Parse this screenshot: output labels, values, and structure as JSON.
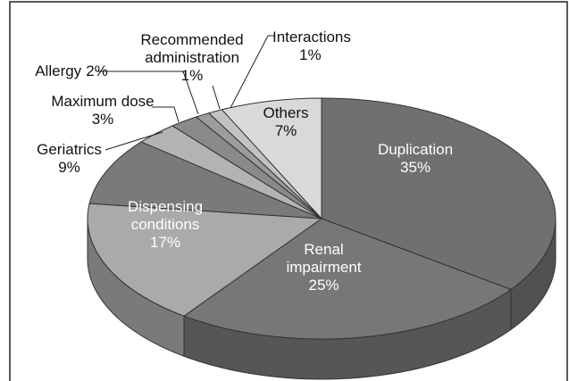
{
  "chart_data": {
    "type": "pie",
    "categories": [
      "Duplication",
      "Renal impairment",
      "Dispensing conditions",
      "Geriatrics",
      "Maximum dose",
      "Allergy",
      "Recommended administration",
      "Interactions",
      "Others"
    ],
    "values": [
      35,
      25,
      17,
      9,
      3,
      2,
      1,
      1,
      7
    ],
    "value_labels": [
      "35%",
      "25%",
      "17%",
      "9%",
      "3%",
      "2%",
      "1%",
      "1%",
      "7%"
    ],
    "colors": [
      "#707070",
      "#777777",
      "#aaaaaa",
      "#7a7a7a",
      "#b3b3b3",
      "#8a8a8a",
      "#9c9c9c",
      "#c2c2c2",
      "#d9d9d9"
    ]
  }
}
